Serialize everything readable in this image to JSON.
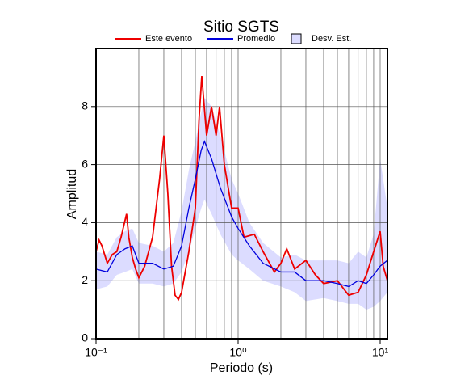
{
  "chart_data": {
    "type": "line",
    "title": "Sitio SGTS",
    "xlabel": "Periodo (s)",
    "ylabel": "Amplitud",
    "xlog": true,
    "xlim": [
      0.1,
      11.25
    ],
    "ylim": [
      0,
      10
    ],
    "xticks": [
      {
        "value": 0.1,
        "label": "10⁻¹"
      },
      {
        "value": 1,
        "label": "10⁰"
      },
      {
        "value": 10,
        "label": "10¹"
      }
    ],
    "xminor": [
      0.2,
      0.3,
      0.4,
      0.5,
      0.6,
      0.7,
      0.8,
      0.9,
      2,
      3,
      4,
      5,
      6,
      7,
      8,
      9
    ],
    "yticks": [
      0,
      2,
      4,
      6,
      8
    ],
    "grid": true,
    "legend": "top",
    "series": [
      {
        "name": "Este evento",
        "color": "#ee0000",
        "x": [
          0.1,
          0.105,
          0.11,
          0.12,
          0.13,
          0.14,
          0.15,
          0.164,
          0.17,
          0.18,
          0.19,
          0.2,
          0.22,
          0.25,
          0.28,
          0.3,
          0.32,
          0.34,
          0.36,
          0.38,
          0.4,
          0.45,
          0.5,
          0.53,
          0.555,
          0.6,
          0.65,
          0.7,
          0.74,
          0.8,
          0.9,
          1.0,
          1.1,
          1.3,
          1.5,
          1.8,
          2.0,
          2.2,
          2.5,
          3.0,
          3.5,
          4.0,
          5.0,
          6.0,
          7.0,
          8.0,
          9.0,
          10.0,
          10.5,
          11.25
        ],
        "values": [
          3.0,
          3.4,
          3.2,
          2.6,
          2.9,
          3.0,
          3.5,
          4.3,
          3.5,
          2.8,
          2.4,
          2.1,
          2.5,
          3.5,
          5.5,
          7.0,
          5.0,
          2.5,
          1.5,
          1.35,
          1.6,
          3.0,
          4.5,
          7.5,
          9.05,
          7.0,
          8.0,
          7.0,
          8.0,
          6.0,
          4.5,
          4.5,
          3.5,
          3.6,
          3.0,
          2.3,
          2.6,
          3.1,
          2.4,
          2.7,
          2.2,
          1.9,
          2.0,
          1.5,
          1.6,
          2.2,
          3.0,
          3.7,
          2.5,
          2.0
        ]
      },
      {
        "name": "Promedio",
        "color": "#0000dd",
        "x": [
          0.1,
          0.12,
          0.14,
          0.16,
          0.18,
          0.2,
          0.25,
          0.3,
          0.35,
          0.4,
          0.45,
          0.5,
          0.55,
          0.58,
          0.65,
          0.75,
          0.9,
          1.0,
          1.2,
          1.5,
          2.0,
          2.5,
          3.0,
          4.0,
          5.0,
          6.0,
          7.0,
          8.0,
          9.0,
          10.0,
          11.25
        ],
        "values": [
          2.4,
          2.3,
          2.9,
          3.1,
          3.2,
          2.6,
          2.6,
          2.4,
          2.5,
          3.2,
          4.5,
          5.5,
          6.5,
          6.8,
          6.2,
          5.2,
          4.2,
          3.8,
          3.2,
          2.6,
          2.3,
          2.3,
          2.0,
          2.0,
          1.9,
          1.8,
          2.0,
          1.9,
          2.2,
          2.5,
          2.7
        ]
      }
    ],
    "band": {
      "name": "Desv. Est.",
      "color": "#dcdcff",
      "x": [
        0.1,
        0.12,
        0.14,
        0.16,
        0.18,
        0.2,
        0.25,
        0.3,
        0.35,
        0.4,
        0.45,
        0.5,
        0.55,
        0.58,
        0.65,
        0.75,
        0.9,
        1.0,
        1.2,
        1.5,
        2.0,
        2.5,
        3.0,
        4.0,
        5.0,
        6.0,
        7.0,
        8.0,
        9.0,
        10.0,
        11.25
      ],
      "lower": [
        1.7,
        1.8,
        2.2,
        2.3,
        2.4,
        1.9,
        1.9,
        1.8,
        1.9,
        2.3,
        3.0,
        3.8,
        4.5,
        4.8,
        4.3,
        3.6,
        2.9,
        2.7,
        2.4,
        2.0,
        1.8,
        1.6,
        1.3,
        1.4,
        1.3,
        1.2,
        1.2,
        1.0,
        1.1,
        1.3,
        1.6
      ],
      "upper": [
        3.0,
        2.9,
        3.5,
        3.7,
        3.8,
        3.3,
        3.2,
        3.0,
        3.3,
        4.4,
        5.8,
        6.8,
        7.8,
        8.3,
        8.0,
        7.0,
        5.5,
        5.0,
        4.0,
        3.3,
        2.8,
        2.9,
        2.7,
        2.7,
        2.7,
        2.6,
        3.0,
        2.8,
        3.6,
        6.2,
        4.5
      ]
    }
  }
}
